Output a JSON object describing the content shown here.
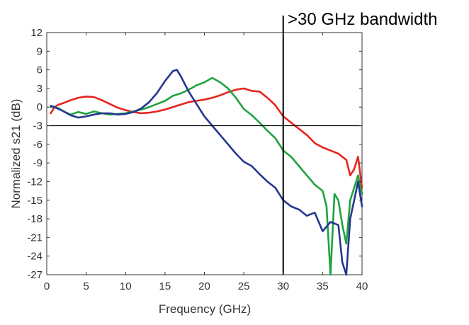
{
  "chart_data": {
    "type": "line",
    "title": "",
    "xlabel": "Frequency (GHz)",
    "ylabel": "Normalized s21 (dB)",
    "xlim": [
      0,
      40
    ],
    "ylim": [
      -27,
      12
    ],
    "x_ticks": [
      0,
      5,
      10,
      15,
      20,
      25,
      30,
      35,
      40
    ],
    "y_ticks": [
      12,
      9,
      6,
      3,
      0,
      -3,
      -6,
      -9,
      -12,
      -15,
      -18,
      -21,
      -24,
      -27
    ],
    "x_tick_labels": [
      "0",
      "5",
      "10",
      "15",
      "20",
      "25",
      "30",
      "35",
      "40"
    ],
    "y_tick_labels": [
      "12",
      "9",
      "6",
      "3",
      "0",
      "-3",
      "-6",
      "-9",
      "-12",
      "-15",
      "-18",
      "-21",
      "-24",
      "-27"
    ],
    "grid": false,
    "legend": "none",
    "reference_lines": {
      "horizontal_y": -3,
      "vertical_x": 30
    },
    "annotation": {
      "text": ">30 GHz bandwidth",
      "x": 30
    },
    "series": [
      {
        "color": "#e8231e",
        "points": [
          [
            0.5,
            -1
          ],
          [
            0.8,
            -0.4
          ],
          [
            1,
            0
          ],
          [
            1.5,
            0.4
          ],
          [
            2,
            0.6
          ],
          [
            3,
            1.1
          ],
          [
            4,
            1.5
          ],
          [
            5,
            1.7
          ],
          [
            6,
            1.6
          ],
          [
            7,
            1.1
          ],
          [
            8,
            0.5
          ],
          [
            9,
            -0.1
          ],
          [
            10,
            -0.5
          ],
          [
            11,
            -0.8
          ],
          [
            12,
            -1
          ],
          [
            13,
            -0.9
          ],
          [
            14,
            -0.7
          ],
          [
            15,
            -0.4
          ],
          [
            16,
            0
          ],
          [
            17,
            0.4
          ],
          [
            18,
            0.8
          ],
          [
            19,
            1
          ],
          [
            20,
            1.2
          ],
          [
            21,
            1.5
          ],
          [
            22,
            1.9
          ],
          [
            23,
            2.4
          ],
          [
            24,
            2.8
          ],
          [
            25,
            3
          ],
          [
            26,
            2.6
          ],
          [
            27,
            2.5
          ],
          [
            28,
            1.5
          ],
          [
            29,
            0.3
          ],
          [
            30,
            -1.5
          ],
          [
            31,
            -2.5
          ],
          [
            32,
            -3.5
          ],
          [
            33,
            -4.5
          ],
          [
            34,
            -5.8
          ],
          [
            35,
            -6.5
          ],
          [
            36,
            -7
          ],
          [
            37,
            -7.5
          ],
          [
            38,
            -8.5
          ],
          [
            38.5,
            -11
          ],
          [
            39,
            -10
          ],
          [
            39.5,
            -8
          ],
          [
            40,
            -13
          ]
        ]
      },
      {
        "color": "#1fa33d",
        "points": [
          [
            0.5,
            0
          ],
          [
            1,
            0
          ],
          [
            1.5,
            -0.2
          ],
          [
            2,
            -0.6
          ],
          [
            3,
            -1.2
          ],
          [
            4,
            -0.8
          ],
          [
            5,
            -1.1
          ],
          [
            6,
            -0.7
          ],
          [
            7,
            -1
          ],
          [
            8,
            -1.2
          ],
          [
            9,
            -1.1
          ],
          [
            10,
            -1
          ],
          [
            11,
            -0.7
          ],
          [
            12,
            -0.4
          ],
          [
            13,
            0
          ],
          [
            14,
            0.5
          ],
          [
            15,
            1
          ],
          [
            16,
            1.8
          ],
          [
            17,
            2.2
          ],
          [
            18,
            2.8
          ],
          [
            19,
            3.5
          ],
          [
            20,
            4
          ],
          [
            21,
            4.7
          ],
          [
            22,
            4
          ],
          [
            23,
            3
          ],
          [
            24,
            1.5
          ],
          [
            25,
            -0.3
          ],
          [
            26,
            -1.3
          ],
          [
            27,
            -2.5
          ],
          [
            28,
            -3.8
          ],
          [
            29,
            -5
          ],
          [
            30,
            -7
          ],
          [
            31,
            -8
          ],
          [
            32,
            -9.5
          ],
          [
            33,
            -11
          ],
          [
            34,
            -12.5
          ],
          [
            35,
            -13.5
          ],
          [
            35.5,
            -16
          ],
          [
            36,
            -27
          ],
          [
            36.5,
            -14
          ],
          [
            37,
            -15
          ],
          [
            37.5,
            -19
          ],
          [
            38,
            -22
          ],
          [
            38.5,
            -15
          ],
          [
            39,
            -13
          ],
          [
            39.5,
            -11
          ],
          [
            40,
            -14
          ]
        ]
      },
      {
        "color": "#24378f",
        "points": [
          [
            0.5,
            0.2
          ],
          [
            1,
            0
          ],
          [
            1.5,
            -0.3
          ],
          [
            2,
            -0.6
          ],
          [
            3,
            -1.3
          ],
          [
            4,
            -1.7
          ],
          [
            5,
            -1.5
          ],
          [
            6,
            -1.2
          ],
          [
            7,
            -1
          ],
          [
            8,
            -1
          ],
          [
            9,
            -1.2
          ],
          [
            10,
            -1.1
          ],
          [
            11,
            -0.8
          ],
          [
            12,
            -0.2
          ],
          [
            13,
            0.8
          ],
          [
            14,
            2.3
          ],
          [
            15,
            4.2
          ],
          [
            16,
            5.8
          ],
          [
            16.5,
            6
          ],
          [
            17,
            5
          ],
          [
            18,
            2.5
          ],
          [
            19,
            0.5
          ],
          [
            20,
            -1.5
          ],
          [
            21,
            -3
          ],
          [
            22,
            -4.5
          ],
          [
            23,
            -6
          ],
          [
            24,
            -7.5
          ],
          [
            25,
            -8.8
          ],
          [
            26,
            -9.5
          ],
          [
            27,
            -10.8
          ],
          [
            28,
            -12
          ],
          [
            29,
            -13
          ],
          [
            30,
            -15
          ],
          [
            31,
            -16
          ],
          [
            32,
            -16.5
          ],
          [
            33,
            -17.5
          ],
          [
            34,
            -17
          ],
          [
            35,
            -20
          ],
          [
            36,
            -18.5
          ],
          [
            37,
            -19
          ],
          [
            37.5,
            -25
          ],
          [
            38,
            -27
          ],
          [
            38.5,
            -18
          ],
          [
            39,
            -15
          ],
          [
            39.5,
            -12
          ],
          [
            40,
            -16
          ]
        ]
      }
    ]
  }
}
